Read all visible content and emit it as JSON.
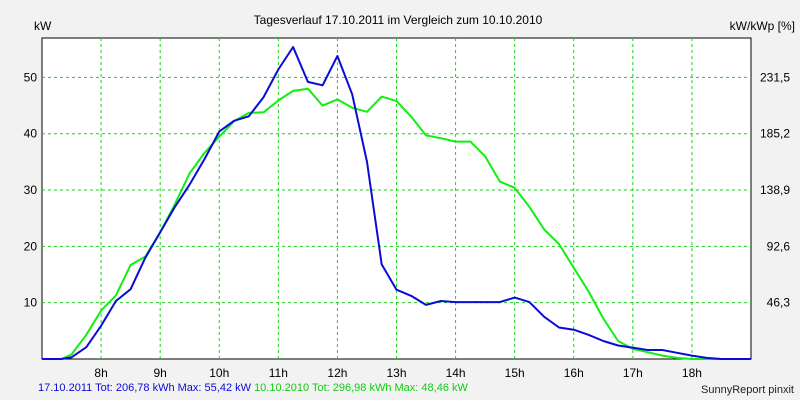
{
  "chart_data": {
    "type": "line",
    "title": "Tagesverlauf 17.10.2011 im Vergleich zum 10.10.2010",
    "ylabel_left": "kW",
    "ylabel_right": "kW/kWp [%]",
    "xlim": [
      7.0,
      19.0
    ],
    "ylim": [
      0,
      57
    ],
    "x_ticks": [
      8,
      9,
      10,
      11,
      12,
      13,
      14,
      15,
      16,
      17,
      18
    ],
    "x_tick_labels": [
      "8h",
      "9h",
      "10h",
      "11h",
      "12h",
      "13h",
      "14h",
      "15h",
      "16h",
      "17h",
      "18h"
    ],
    "y_ticks": [
      10,
      20,
      30,
      40,
      50
    ],
    "y_tick_labels": [
      "10",
      "20",
      "30",
      "40",
      "50"
    ],
    "y2_ticks": [
      10,
      20,
      30,
      40,
      50
    ],
    "y2_tick_labels": [
      "46,3",
      "92,6",
      "138,9",
      "185,2",
      "231,5"
    ],
    "grid": true,
    "series": [
      {
        "name": "17.10.2011",
        "color": "#0b0bd6",
        "x": [
          7.0,
          7.33,
          7.5,
          7.75,
          8.0,
          8.25,
          8.5,
          8.75,
          9.0,
          9.25,
          9.5,
          9.75,
          10.0,
          10.25,
          10.5,
          10.75,
          11.0,
          11.25,
          11.5,
          11.75,
          12.0,
          12.25,
          12.5,
          12.75,
          13.0,
          13.25,
          13.5,
          13.75,
          14.0,
          14.25,
          14.5,
          14.75,
          15.0,
          15.25,
          15.5,
          15.75,
          16.0,
          16.25,
          16.5,
          16.75,
          17.0,
          17.25,
          17.5,
          17.75,
          18.0,
          18.25,
          18.5,
          18.75,
          19.0
        ],
        "y": [
          0,
          0,
          0.3,
          2.1,
          5.9,
          10.3,
          12.4,
          18.0,
          22.5,
          27.0,
          31.0,
          35.5,
          40.4,
          42.3,
          43.1,
          46.5,
          51.4,
          55.4,
          49.2,
          48.6,
          53.8,
          47.0,
          35.0,
          16.8,
          12.3,
          11.2,
          9.6,
          10.3,
          10.1,
          10.1,
          10.1,
          10.1,
          10.9,
          10.1,
          7.5,
          5.6,
          5.2,
          4.3,
          3.2,
          2.4,
          2.0,
          1.6,
          1.6,
          1.1,
          0.6,
          0.2,
          0,
          0,
          0
        ],
        "total": "206,78 kWh",
        "max": "55,42 kW"
      },
      {
        "name": "10.10.2010",
        "color": "#11ee11",
        "x": [
          7.0,
          7.33,
          7.5,
          7.75,
          8.0,
          8.25,
          8.5,
          8.75,
          9.0,
          9.25,
          9.5,
          9.75,
          10.0,
          10.25,
          10.5,
          10.75,
          11.0,
          11.25,
          11.5,
          11.75,
          12.0,
          12.25,
          12.5,
          12.75,
          13.0,
          13.25,
          13.5,
          13.75,
          14.0,
          14.25,
          14.5,
          14.75,
          15.0,
          15.25,
          15.5,
          15.75,
          16.0,
          16.25,
          16.5,
          16.75,
          17.0,
          17.25,
          17.5,
          17.75,
          18.0,
          18.25,
          18.5,
          18.75,
          19.0
        ],
        "y": [
          0,
          0,
          0.8,
          4.3,
          8.6,
          11.3,
          16.7,
          18.2,
          22.5,
          27.5,
          33.0,
          36.6,
          39.5,
          42.2,
          43.7,
          43.8,
          45.9,
          47.6,
          48.0,
          45.0,
          46.1,
          44.6,
          43.9,
          46.6,
          45.8,
          43.0,
          39.7,
          39.2,
          38.6,
          38.6,
          36.0,
          31.5,
          30.4,
          27.0,
          23.0,
          20.4,
          16.2,
          12.0,
          7.2,
          3.2,
          1.8,
          1.2,
          0.6,
          0.2,
          0,
          0,
          0,
          0,
          0
        ],
        "total": "296,98 kWh",
        "max": "48,46 kW"
      }
    ]
  },
  "footer": {
    "series_1": "17.10.2011 Tot: 206,78 kWh Max: 55,42 kW",
    "series_2": "10.10.2010 Tot: 296,98 kWh Max: 48,46 kW"
  },
  "credit": "SunnyReport pinxit"
}
